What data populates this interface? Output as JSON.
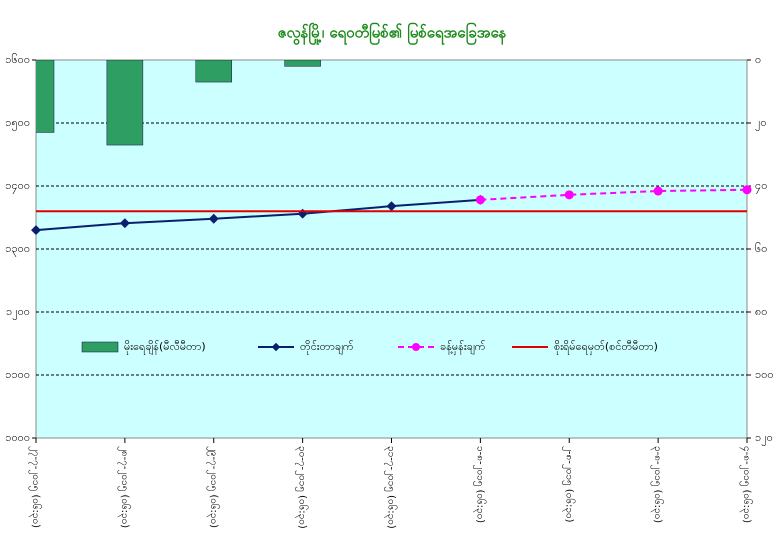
{
  "chart_data": {
    "type": "combo",
    "title": "ဇလွန်မြို့၊ ရေဝတီမြစ်၏ မြစ်ရေအခြေအနေ",
    "categories": [
      "၂၇-၇-၂၀၁၅ (၀၆:၃၀)",
      "၂၈-၇-၂၀၁၅ (၀၆:၃၀)",
      "၂၉-၇-၂၀၁၅ (၀၆:၃၀)",
      "၃၀-၇-၂၀၁၅ (၀၆:၃၀)",
      "၃၁-၇-၂၀၁၅ (၀၆:၃၀)",
      "၁-၈-၂၀၁၅ (၀၆:၃၀)",
      "၂-၈-၂၀၁၅ (၀၆:၃၀)",
      "၃-၈-၂၀၁၅ (၀၆:၃၀)",
      "၄-၈-၂၀၁၅ (၀၆:၃၀)"
    ],
    "series": [
      {
        "name": "မိုးရေချိန်(မီလီမီတာ)",
        "kind": "bar",
        "axis": "y2",
        "color": "#2e9e62",
        "values": [
          23,
          27,
          7,
          2,
          null,
          null,
          null,
          null,
          null
        ]
      },
      {
        "name": "တိုင်းတာချက်",
        "kind": "line",
        "color": "#0a1f6e",
        "values": [
          1330,
          1341,
          1348,
          1356,
          1368,
          1378,
          null,
          null,
          null
        ]
      },
      {
        "name": "ခန့်မှန်းချက်",
        "kind": "dashed",
        "color": "#ff00ff",
        "values": [
          null,
          null,
          null,
          null,
          null,
          1378,
          1386,
          1392,
          1394
        ]
      },
      {
        "name": "စိုးရိမ်ရေမှတ်(စင်တီမီတာ)",
        "kind": "level",
        "color": "#e00000",
        "value": 1360
      }
    ],
    "ylim": [
      1000,
      1600
    ],
    "yticks": [
      {
        "value": 1000,
        "label": "၁၀၀၀"
      },
      {
        "value": 1100,
        "label": "၁၁၀၀"
      },
      {
        "value": 1200,
        "label": "၁၂၀၀"
      },
      {
        "value": 1300,
        "label": "၁၃၀၀"
      },
      {
        "value": 1400,
        "label": "၁၄၀၀"
      },
      {
        "value": 1500,
        "label": "၁၅၀၀"
      },
      {
        "value": 1600,
        "label": "၁၆၀၀"
      }
    ],
    "y2lim": [
      120,
      0
    ],
    "y2ticks": [
      {
        "value": 0,
        "label": "၀"
      },
      {
        "value": 20,
        "label": "၂၀"
      },
      {
        "value": 40,
        "label": "၄၀"
      },
      {
        "value": 60,
        "label": "၆၀"
      },
      {
        "value": 80,
        "label": "၈၀"
      },
      {
        "value": 100,
        "label": "၁၀၀"
      },
      {
        "value": 120,
        "label": "၁၂၀"
      }
    ],
    "grid": true
  }
}
